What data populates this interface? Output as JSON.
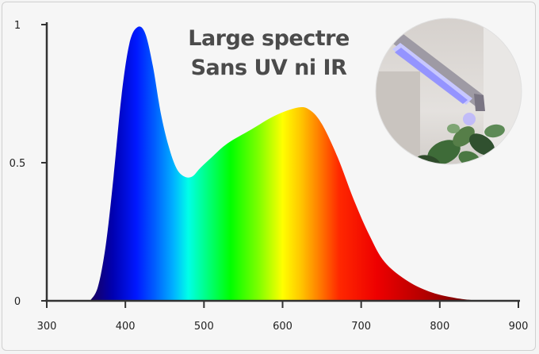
{
  "chart_data": {
    "type": "area",
    "title": [
      "Large spectre",
      "Sans UV ni IR"
    ],
    "xlabel": "",
    "ylabel": "",
    "xlim": [
      300,
      900
    ],
    "ylim": [
      0,
      1
    ],
    "xticks": [
      300,
      400,
      500,
      600,
      700,
      800,
      900
    ],
    "yticks": [
      {
        "value": 0,
        "label": "0"
      },
      {
        "value": 0.5,
        "label": "0.5"
      },
      {
        "value": 1,
        "label": "1"
      }
    ],
    "grid": false,
    "legend": "none",
    "fill": "visible-spectrum gradient by wavelength",
    "x": [
      355,
      365,
      375,
      385,
      395,
      405,
      415,
      425,
      435,
      445,
      455,
      465,
      475,
      485,
      495,
      510,
      530,
      560,
      590,
      620,
      635,
      650,
      670,
      690,
      710,
      730,
      760,
      790,
      820,
      850
    ],
    "y": [
      0,
      0.05,
      0.2,
      0.45,
      0.74,
      0.93,
      0.99,
      0.97,
      0.85,
      0.68,
      0.56,
      0.48,
      0.45,
      0.45,
      0.48,
      0.52,
      0.57,
      0.62,
      0.67,
      0.7,
      0.69,
      0.64,
      0.52,
      0.37,
      0.24,
      0.14,
      0.07,
      0.03,
      0.01,
      0
    ],
    "image": "photo-led-grow-light-over-plant"
  }
}
